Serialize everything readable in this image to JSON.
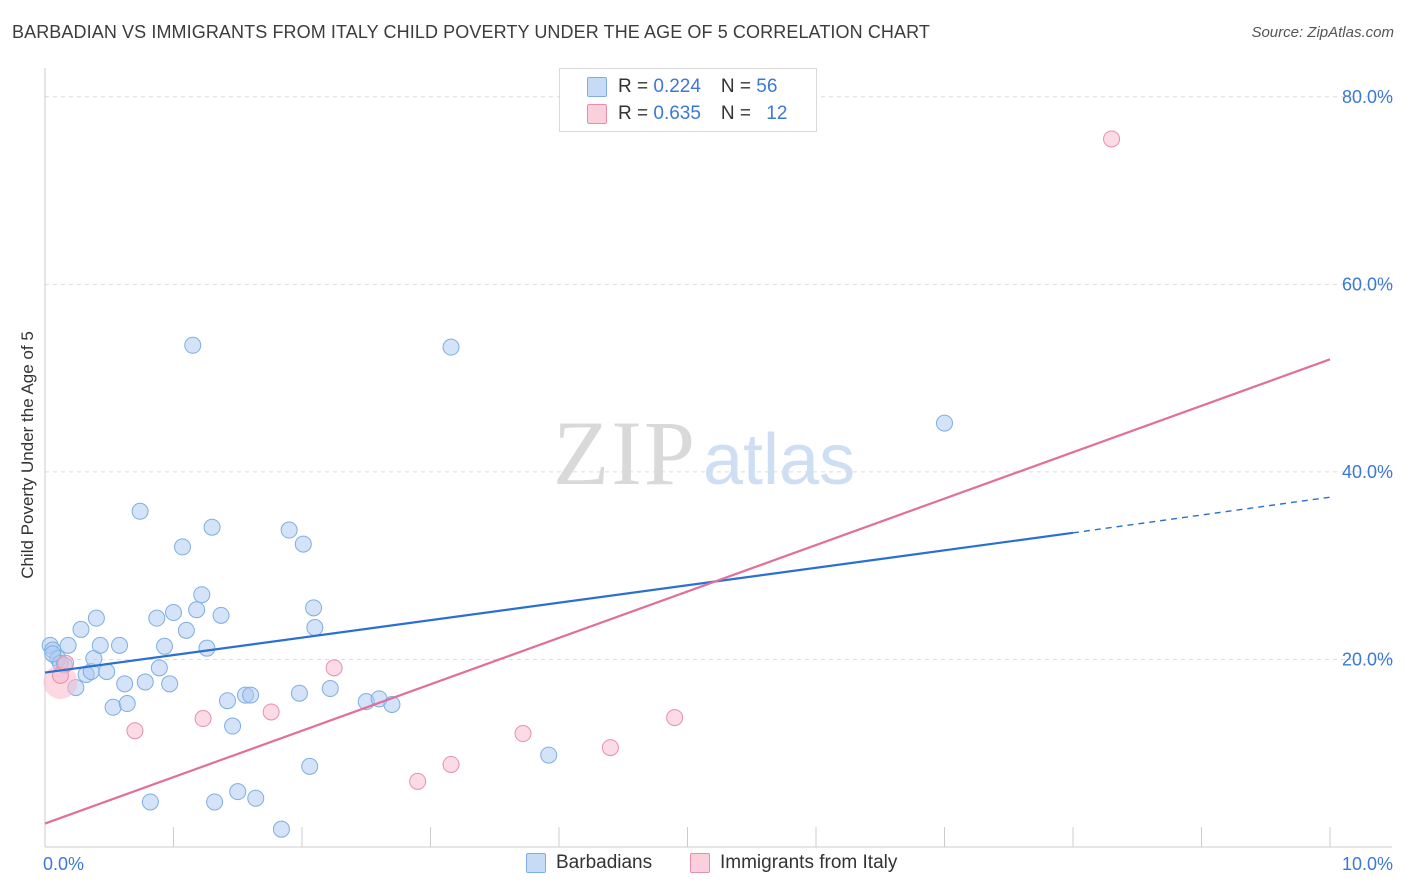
{
  "title": "BARBADIAN VS IMMIGRANTS FROM ITALY CHILD POVERTY UNDER THE AGE OF 5 CORRELATION CHART",
  "source": "Source: ZipAtlas.com",
  "watermark": {
    "zip": "ZIP",
    "atlas": "atlas"
  },
  "legend_top": {
    "rows": [
      {
        "r_label": "R = ",
        "r_value": "0.224",
        "n_label": "N = ",
        "n_value": "56",
        "color": "#a9c8f0"
      },
      {
        "r_label": "R = ",
        "r_value": "0.635",
        "n_label": "N = ",
        "n_value": "12",
        "color": "#f7b8cb"
      }
    ]
  },
  "chart_data": {
    "type": "scatter",
    "title": "BARBADIAN VS IMMIGRANTS FROM ITALY CHILD POVERTY UNDER THE AGE OF 5 CORRELATION CHART",
    "xlabel": "",
    "ylabel": "Child Poverty Under the Age of 5",
    "xlim": [
      0,
      10
    ],
    "ylim": [
      0,
      82
    ],
    "x_tick_labels": [
      {
        "value": 0,
        "label": "0.0%"
      },
      {
        "value": 10,
        "label": "10.0%"
      }
    ],
    "y_tick_labels": [
      {
        "value": 20,
        "label": "20.0%"
      },
      {
        "value": 40,
        "label": "40.0%"
      },
      {
        "value": 60,
        "label": "60.0%"
      },
      {
        "value": 80,
        "label": "80.0%"
      }
    ],
    "grid": true,
    "legend_position": "bottom",
    "series": [
      {
        "name": "Barbadians",
        "color": "#a9c8f0",
        "stroke": "#7eaee4",
        "trend_color": "#2a6fd1",
        "trend": {
          "x0": 0,
          "y0": 18.6,
          "x1": 8.0,
          "y1": 33.5,
          "dash_to_x": 10.0,
          "dash_to_y": 37.3
        },
        "points": [
          [
            0.04,
            21.5
          ],
          [
            0.06,
            21.0
          ],
          [
            0.1,
            20.1
          ],
          [
            0.12,
            19.6
          ],
          [
            0.18,
            21.5
          ],
          [
            0.24,
            17.0
          ],
          [
            0.28,
            23.2
          ],
          [
            0.32,
            18.4
          ],
          [
            0.36,
            18.7
          ],
          [
            0.38,
            20.1
          ],
          [
            0.4,
            24.4
          ],
          [
            0.43,
            21.5
          ],
          [
            0.48,
            18.7
          ],
          [
            0.53,
            14.9
          ],
          [
            0.58,
            21.5
          ],
          [
            0.62,
            17.4
          ],
          [
            0.64,
            15.3
          ],
          [
            0.74,
            35.8
          ],
          [
            0.78,
            17.6
          ],
          [
            0.82,
            4.8
          ],
          [
            0.87,
            24.4
          ],
          [
            0.89,
            19.1
          ],
          [
            0.93,
            21.4
          ],
          [
            0.97,
            17.4
          ],
          [
            1.0,
            25.0
          ],
          [
            1.07,
            32.0
          ],
          [
            1.1,
            23.1
          ],
          [
            1.15,
            53.5
          ],
          [
            1.18,
            25.3
          ],
          [
            1.22,
            26.9
          ],
          [
            1.26,
            21.2
          ],
          [
            1.3,
            34.1
          ],
          [
            1.32,
            4.8
          ],
          [
            1.37,
            24.7
          ],
          [
            1.42,
            15.6
          ],
          [
            1.46,
            12.9
          ],
          [
            1.5,
            5.9
          ],
          [
            1.56,
            16.2
          ],
          [
            1.6,
            16.2
          ],
          [
            1.64,
            5.2
          ],
          [
            1.84,
            1.9
          ],
          [
            1.9,
            33.8
          ],
          [
            1.98,
            16.4
          ],
          [
            2.01,
            32.3
          ],
          [
            2.06,
            8.6
          ],
          [
            2.09,
            25.5
          ],
          [
            2.1,
            23.4
          ],
          [
            2.22,
            16.9
          ],
          [
            2.5,
            15.5
          ],
          [
            2.6,
            15.8
          ],
          [
            2.7,
            15.2
          ],
          [
            3.16,
            53.3
          ],
          [
            3.92,
            9.8
          ],
          [
            7.0,
            45.2
          ],
          [
            0.06,
            20.6
          ],
          [
            0.15,
            19.4
          ]
        ]
      },
      {
        "name": "Immigrants from Italy",
        "color": "#f7b8cb",
        "stroke": "#e98fad",
        "trend_color": "#e0709a",
        "trend": {
          "x0": 0,
          "y0": 2.5,
          "x1": 10.0,
          "y1": 52.0
        },
        "points": [
          [
            0.12,
            18.3
          ],
          [
            0.16,
            19.6
          ],
          [
            0.7,
            12.4
          ],
          [
            1.23,
            13.7
          ],
          [
            1.76,
            14.4
          ],
          [
            2.25,
            19.1
          ],
          [
            2.9,
            7.0
          ],
          [
            3.16,
            8.8
          ],
          [
            3.72,
            12.1
          ],
          [
            4.4,
            10.6
          ],
          [
            4.9,
            13.8
          ],
          [
            8.3,
            75.5
          ]
        ]
      }
    ]
  }
}
